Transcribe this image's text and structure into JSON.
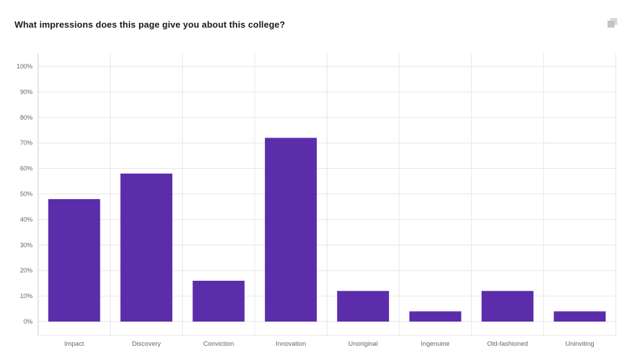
{
  "question": {
    "title": "What impressions does this page give you about this college?"
  },
  "toolbar": {
    "copy_icon": "copy-icon"
  },
  "colors": {
    "bar": "#5c2dab",
    "grid": "#e6e6e6",
    "axis": "#cccccc",
    "icon": "#cfcfcf"
  },
  "chart_data": {
    "type": "bar",
    "title": "What impressions does this page give you about this college?",
    "xlabel": "",
    "ylabel": "",
    "categories": [
      "Impact",
      "Discovery",
      "Conviction",
      "Innovation",
      "Unoriginal",
      "Ingenuine",
      "Old-fashioned",
      "Uninviting"
    ],
    "values": [
      48,
      58,
      16,
      72,
      12,
      4,
      12,
      4
    ],
    "ylim": [
      0,
      100
    ],
    "yticks": [
      0,
      10,
      20,
      30,
      40,
      50,
      60,
      70,
      80,
      90,
      100
    ],
    "ytick_labels": [
      "0%",
      "10%",
      "20%",
      "30%",
      "40%",
      "50%",
      "60%",
      "70%",
      "80%",
      "90%",
      "100%"
    ],
    "grid": true,
    "legend": "none"
  }
}
